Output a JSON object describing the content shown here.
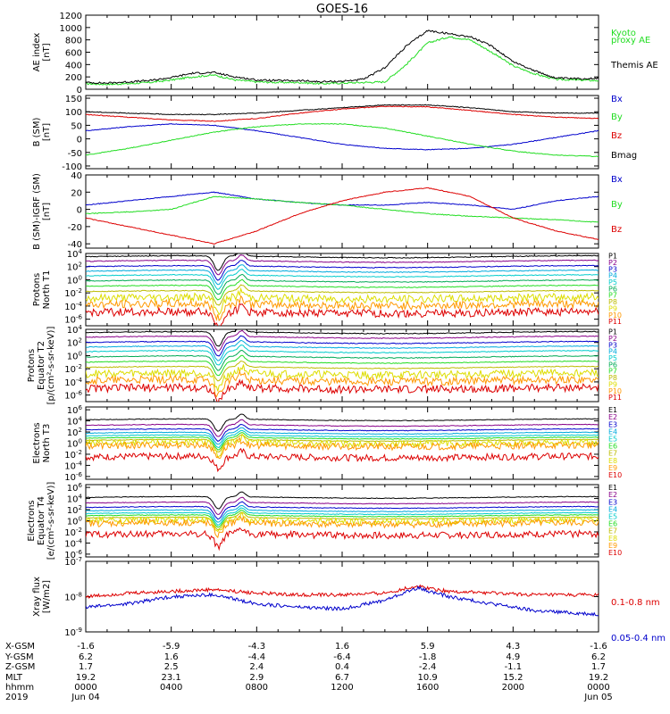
{
  "title": "GOES-16",
  "colors": {
    "black": "#000000",
    "red": "#dd0000",
    "green": "#22dd22",
    "blue": "#0000cc",
    "yellow": "#dddd00",
    "orange": "#ff9900",
    "cyan": "#00cccc",
    "purple": "#880088",
    "magenta": "#cc00cc"
  },
  "chart_data": [
    {
      "type": "line",
      "id": "ae",
      "ylabel": [
        "AE index",
        "[nT]"
      ],
      "ylim": [
        0,
        1200
      ],
      "yticks": [
        "0",
        "200",
        "400",
        "600",
        "800",
        "1000",
        "1200"
      ],
      "legend": [
        "Kyoto",
        "proxy AE",
        "Themis AE"
      ],
      "series": [
        {
          "name": "Kyoto proxy AE",
          "color": "#22dd22",
          "x": [
            0,
            1,
            2,
            3,
            4,
            5,
            6,
            7,
            8,
            9,
            10,
            11,
            12,
            13,
            14,
            15,
            16,
            17,
            18,
            19,
            20,
            21,
            22,
            23,
            24
          ],
          "values": [
            90,
            80,
            90,
            110,
            150,
            200,
            230,
            150,
            120,
            110,
            110,
            90,
            100,
            110,
            120,
            400,
            750,
            850,
            800,
            600,
            380,
            250,
            160,
            150,
            140
          ]
        },
        {
          "name": "Themis AE",
          "color": "#000000",
          "x": [
            0,
            1,
            2,
            3,
            4,
            5,
            6,
            7,
            8,
            9,
            10,
            11,
            12,
            13,
            14,
            15,
            16,
            17,
            18,
            19,
            20,
            21,
            22,
            23,
            24
          ],
          "values": [
            110,
            100,
            120,
            140,
            190,
            260,
            270,
            200,
            150,
            140,
            140,
            120,
            130,
            160,
            350,
            700,
            950,
            900,
            850,
            700,
            450,
            300,
            180,
            170,
            180
          ]
        }
      ]
    },
    {
      "type": "line",
      "id": "bsm",
      "ylabel": [
        "B (SM)",
        "[nT]"
      ],
      "ylim": [
        -110,
        160
      ],
      "yticks": [
        "-100",
        "-50",
        "0",
        "50",
        "100",
        "150"
      ],
      "legend": [
        "Bx",
        "By",
        "Bz",
        "Bmag"
      ],
      "series": [
        {
          "name": "Bx",
          "color": "#0000cc",
          "x": [
            0,
            2,
            4,
            6,
            8,
            10,
            12,
            14,
            16,
            18,
            20,
            22,
            24
          ],
          "values": [
            30,
            45,
            55,
            50,
            30,
            5,
            -20,
            -35,
            -40,
            -35,
            -20,
            5,
            30
          ]
        },
        {
          "name": "By",
          "color": "#22dd22",
          "x": [
            0,
            2,
            4,
            6,
            8,
            10,
            12,
            14,
            16,
            18,
            20,
            22,
            24
          ],
          "values": [
            -60,
            -35,
            -5,
            25,
            45,
            55,
            55,
            40,
            10,
            -20,
            -45,
            -60,
            -65
          ]
        },
        {
          "name": "Bz",
          "color": "#dd0000",
          "x": [
            0,
            2,
            4,
            6,
            8,
            10,
            12,
            14,
            16,
            18,
            20,
            22,
            24
          ],
          "values": [
            90,
            80,
            70,
            65,
            75,
            95,
            110,
            120,
            118,
            105,
            90,
            80,
            75
          ]
        },
        {
          "name": "Bmag",
          "color": "#000000",
          "x": [
            0,
            2,
            4,
            6,
            8,
            10,
            12,
            14,
            16,
            18,
            20,
            22,
            24
          ],
          "values": [
            100,
            95,
            90,
            90,
            95,
            105,
            115,
            125,
            125,
            115,
            100,
            95,
            95
          ]
        }
      ]
    },
    {
      "type": "line",
      "id": "bigrf",
      "ylabel": [
        "B (SM)-IGRF (SM)",
        "[nT]"
      ],
      "ylim": [
        -45,
        40
      ],
      "yticks": [
        "-40",
        "-20",
        "0",
        "20",
        "40"
      ],
      "legend": [
        "Bx",
        "By",
        "Bz"
      ],
      "series": [
        {
          "name": "Bx",
          "color": "#0000cc",
          "x": [
            0,
            2,
            4,
            6,
            8,
            10,
            12,
            14,
            16,
            18,
            20,
            22,
            24
          ],
          "values": [
            5,
            10,
            15,
            20,
            12,
            8,
            5,
            5,
            8,
            5,
            0,
            10,
            15
          ]
        },
        {
          "name": "By",
          "color": "#22dd22",
          "x": [
            0,
            2,
            4,
            6,
            8,
            10,
            12,
            14,
            16,
            18,
            20,
            22,
            24
          ],
          "values": [
            -5,
            -3,
            0,
            15,
            12,
            8,
            5,
            0,
            -5,
            -8,
            -10,
            -12,
            -15
          ]
        },
        {
          "name": "Bz",
          "color": "#dd0000",
          "x": [
            0,
            2,
            4,
            6,
            8,
            10,
            12,
            14,
            16,
            18,
            20,
            22,
            24
          ],
          "values": [
            -10,
            -20,
            -30,
            -40,
            -25,
            -5,
            10,
            20,
            25,
            15,
            -10,
            -25,
            -35
          ]
        }
      ]
    },
    {
      "type": "line",
      "id": "protonsT1",
      "ylabel": [
        "Protons",
        "North T1"
      ],
      "ylog": true,
      "ylim": [
        -7,
        4
      ],
      "yticks": [
        "10^4",
        "10^2",
        "10^0",
        "10^-2",
        "10^-4",
        "10^-6"
      ],
      "legend": [
        "P1",
        "P2",
        "P3",
        "P4",
        "P5",
        "P6",
        "P7",
        "P8",
        "P9",
        "P10",
        "P11"
      ],
      "channels_log10": [
        3.5,
        2.8,
        2.0,
        1.3,
        0.6,
        -0.2,
        -1.0,
        -1.8,
        -2.8,
        -3.8,
        -5.0
      ],
      "dip_hour": 6.2
    },
    {
      "type": "line",
      "id": "protonsT2",
      "ylabel": [
        "Protons",
        "Equator T2",
        "[p/(cm²-s-sr-keV)]"
      ],
      "ylog": true,
      "ylim": [
        -7,
        4
      ],
      "yticks": [
        "10^4",
        "10^2",
        "10^0",
        "10^-2",
        "10^-4",
        "10^-6"
      ],
      "legend": [
        "P1",
        "P2",
        "P3",
        "P4",
        "P5",
        "P6",
        "P7",
        "P8",
        "P9",
        "P10",
        "P11"
      ],
      "channels_log10": [
        3.5,
        2.8,
        2.0,
        1.3,
        0.6,
        -0.2,
        -1.0,
        -1.8,
        -2.8,
        -3.8,
        -5.0
      ],
      "dip_hour": 6.2
    },
    {
      "type": "line",
      "id": "electronsT3",
      "ylabel": [
        "Electrons",
        "North T3"
      ],
      "ylog": true,
      "ylim": [
        -6.5,
        6.5
      ],
      "yticks": [
        "10^6",
        "10^4",
        "10^2",
        "10^0",
        "10^-2",
        "10^-4",
        "10^-6"
      ],
      "legend": [
        "E1",
        "E2",
        "E3",
        "E4",
        "E5",
        "E6",
        "E7",
        "E8",
        "E9",
        "E10"
      ],
      "channels_log10": [
        4.2,
        3.2,
        2.4,
        1.8,
        1.3,
        0.9,
        0.5,
        0.0,
        -0.5,
        -2.5
      ],
      "dip_hour": 6.2
    },
    {
      "type": "line",
      "id": "electronsT4",
      "ylabel": [
        "Electrons",
        "Equator T4",
        "[e/(cm²-s-sr-keV)]"
      ],
      "ylog": true,
      "ylim": [
        -6.5,
        6.5
      ],
      "yticks": [
        "10^6",
        "10^4",
        "10^2",
        "10^0",
        "10^-2",
        "10^-4",
        "10^-6"
      ],
      "legend": [
        "E1",
        "E2",
        "E3",
        "E4",
        "E5",
        "E6",
        "E7",
        "E8",
        "E9",
        "E10"
      ],
      "channels_log10": [
        4.2,
        3.2,
        2.4,
        1.8,
        1.3,
        0.9,
        0.5,
        0.0,
        -0.5,
        -2.5
      ],
      "dip_hour": 6.2
    },
    {
      "type": "line",
      "id": "xray",
      "ylabel": [
        "Xray flux",
        "[W/m2]"
      ],
      "ylog": true,
      "ylim": [
        -9,
        -7
      ],
      "yticks": [
        "10^-7",
        "10^-8",
        "10^-9"
      ],
      "legend": [
        "0.1-0.8 nm",
        "0.05-0.4 nm"
      ],
      "series": [
        {
          "name": "0.1-0.8 nm",
          "color": "#dd0000",
          "x": [
            0,
            2,
            4,
            6,
            8,
            10,
            12,
            14,
            15.5,
            17,
            19,
            21,
            24
          ],
          "values": [
            -8.0,
            -7.9,
            -7.85,
            -7.8,
            -7.9,
            -7.95,
            -7.95,
            -7.9,
            -7.7,
            -7.85,
            -7.9,
            -7.95,
            -7.95
          ]
        },
        {
          "name": "0.05-0.4 nm",
          "color": "#0000cc",
          "x": [
            0,
            2,
            4,
            6,
            8,
            10,
            12,
            14,
            15.5,
            17,
            19,
            21,
            24
          ],
          "values": [
            -8.3,
            -8.2,
            -8.0,
            -7.95,
            -8.2,
            -8.3,
            -8.35,
            -8.1,
            -7.75,
            -8.0,
            -8.2,
            -8.4,
            -8.5
          ]
        }
      ]
    }
  ],
  "xaxis": {
    "range": [
      0,
      24
    ],
    "row_labels": [
      "X-GSM",
      "Y-GSM",
      "Z-GSM",
      "MLT",
      "hhmm",
      "2019"
    ],
    "columns": [
      {
        "x": 0,
        "vals": [
          "-1.6",
          "6.2",
          "1.7",
          "19.2",
          "0000",
          "Jun 04"
        ]
      },
      {
        "x": 4,
        "vals": [
          "-5.9",
          "1.6",
          "2.5",
          "23.1",
          "0400",
          ""
        ]
      },
      {
        "x": 8,
        "vals": [
          "-4.3",
          "-4.4",
          "2.4",
          "2.9",
          "0800",
          ""
        ]
      },
      {
        "x": 12,
        "vals": [
          "1.6",
          "-6.4",
          "0.4",
          "6.7",
          "1200",
          ""
        ]
      },
      {
        "x": 16,
        "vals": [
          "5.9",
          "-1.8",
          "-2.4",
          "10.9",
          "1600",
          ""
        ]
      },
      {
        "x": 20,
        "vals": [
          "4.3",
          "4.9",
          "-1.1",
          "15.2",
          "2000",
          ""
        ]
      },
      {
        "x": 24,
        "vals": [
          "-1.6",
          "6.2",
          "1.7",
          "19.2",
          "0000",
          "Jun 05"
        ]
      }
    ]
  }
}
